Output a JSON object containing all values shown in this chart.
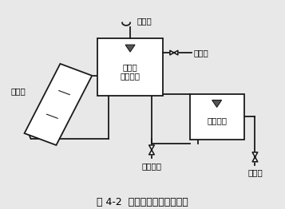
{
  "title": "图 4-2  自然循环定温放水系统",
  "bg_color": "#e8e8e8",
  "line_color": "#1a1a1a",
  "box_color": "#ffffff",
  "labels": {
    "collector": "集热器",
    "solar_tank": "太阳能\n储热水箱",
    "supply_tank": "供热水箱",
    "valve_label": "放气阀",
    "supply_hot": "供热水",
    "cold_water": "接自来水",
    "hot_water_out": "供热水"
  },
  "figsize": [
    3.57,
    2.62
  ],
  "dpi": 100,
  "font": "SimSun"
}
